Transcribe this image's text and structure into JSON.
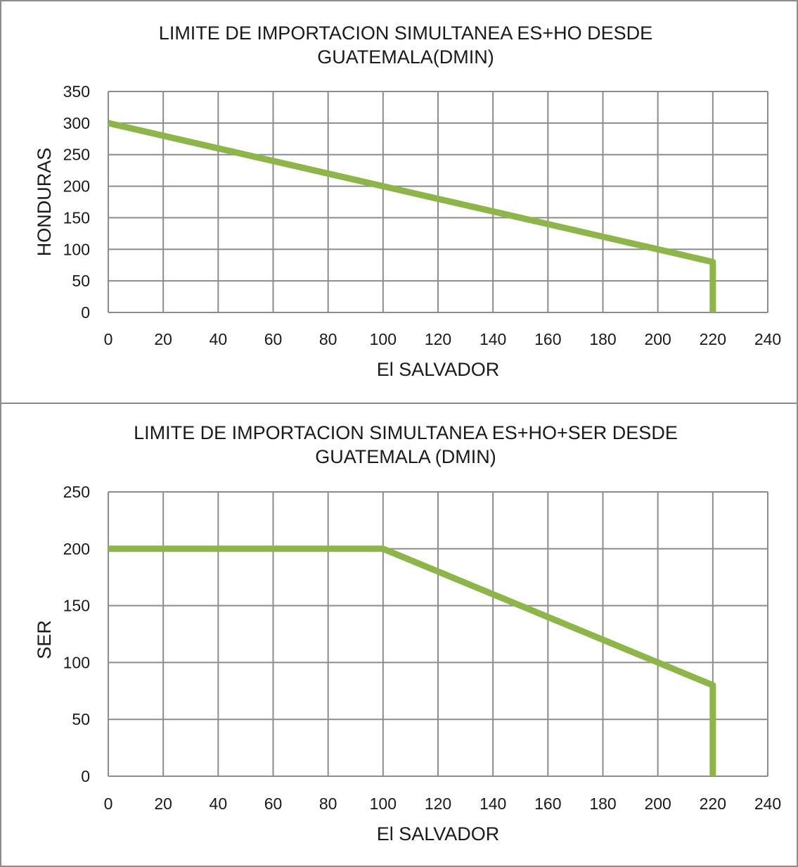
{
  "chart_data": [
    {
      "type": "line",
      "title": "LIMITE DE IMPORTACION SIMULTANEA ES+HO DESDE",
      "subtitle": "GUATEMALA(DMIN)",
      "xlabel": "El SALVADOR",
      "ylabel": "HONDURAS",
      "xlim": [
        0,
        240
      ],
      "ylim": [
        0,
        350
      ],
      "xticks": [
        "0",
        "20",
        "40",
        "60",
        "80",
        "100",
        "120",
        "140",
        "160",
        "180",
        "200",
        "220",
        "240"
      ],
      "yticks": [
        "0",
        "50",
        "100",
        "150",
        "200",
        "250",
        "300",
        "350"
      ],
      "grid": true,
      "color": "#8db54a",
      "series": [
        {
          "points": [
            [
              0,
              300
            ],
            [
              100,
              200
            ],
            [
              200,
              100
            ],
            [
              220,
              80
            ],
            [
              220,
              0
            ]
          ]
        }
      ]
    },
    {
      "type": "line",
      "title": "LIMITE DE IMPORTACION SIMULTANEA ES+HO+SER DESDE",
      "subtitle": "GUATEMALA (DMIN)",
      "xlabel": "El SALVADOR",
      "ylabel": "SER",
      "xlim": [
        0,
        240
      ],
      "ylim": [
        0,
        250
      ],
      "xticks": [
        "0",
        "20",
        "40",
        "60",
        "80",
        "100",
        "120",
        "140",
        "160",
        "180",
        "200",
        "220",
        "240"
      ],
      "yticks": [
        "0",
        "50",
        "100",
        "150",
        "200",
        "250"
      ],
      "grid": true,
      "color": "#8db54a",
      "series": [
        {
          "points": [
            [
              0,
              200
            ],
            [
              100,
              200
            ],
            [
              200,
              100
            ],
            [
              220,
              80
            ],
            [
              220,
              0
            ]
          ]
        }
      ]
    }
  ]
}
